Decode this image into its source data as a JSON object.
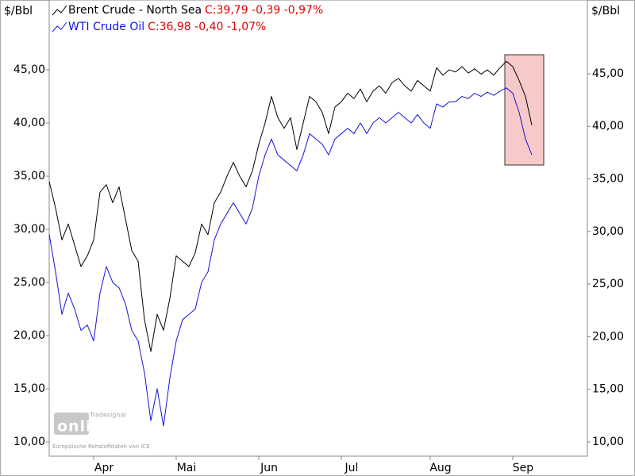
{
  "chart_data": {
    "type": "line",
    "y_label": "$/Bbl",
    "y2_label": "$/Bbl",
    "categories": [
      null,
      null,
      null,
      null,
      null,
      null,
      null,
      "Apr",
      null,
      null,
      null,
      null,
      null,
      null,
      null,
      null,
      null,
      null,
      null,
      null,
      "Mai",
      null,
      null,
      null,
      null,
      null,
      null,
      null,
      null,
      null,
      null,
      null,
      null,
      "Jun",
      null,
      null,
      null,
      null,
      null,
      null,
      null,
      null,
      null,
      null,
      null,
      null,
      "Jul",
      null,
      null,
      null,
      null,
      null,
      null,
      null,
      null,
      null,
      null,
      null,
      null,
      null,
      "Aug",
      null,
      null,
      null,
      null,
      null,
      null,
      null,
      null,
      null,
      null,
      null,
      null,
      "Sep",
      null,
      null,
      null
    ],
    "series": [
      {
        "name": "Brent Crude - North Sea",
        "quote": "C:39,79 -0,39 -0,97%",
        "color": "#000000",
        "values": [
          34.5,
          32.0,
          29.0,
          30.5,
          28.5,
          26.5,
          27.5,
          29.0,
          33.5,
          34.2,
          32.5,
          34.0,
          31.0,
          28.0,
          27.0,
          21.5,
          18.5,
          22.0,
          20.5,
          23.5,
          27.5,
          27.0,
          26.5,
          27.8,
          30.5,
          29.5,
          32.5,
          33.5,
          35.0,
          36.3,
          35.0,
          34.0,
          35.5,
          38.0,
          40.0,
          42.5,
          40.5,
          39.5,
          40.5,
          37.5,
          40.0,
          42.5,
          42.0,
          41.0,
          39.0,
          41.5,
          42.0,
          42.8,
          42.3,
          43.2,
          42.0,
          43.0,
          43.5,
          42.8,
          43.8,
          44.2,
          43.5,
          43.0,
          44.0,
          43.5,
          43.0,
          45.2,
          44.5,
          45.0,
          44.8,
          45.3,
          44.7,
          45.1,
          44.6,
          45.0,
          44.5,
          45.2,
          45.8,
          45.3,
          44.0,
          42.5,
          39.8
        ]
      },
      {
        "name": "WTI Crude Oil",
        "quote": "C:36,98 -0,40 -1,07%",
        "color": "#1414d8",
        "values": [
          29.5,
          26.0,
          22.0,
          24.0,
          22.5,
          20.5,
          21.0,
          19.5,
          24.0,
          26.5,
          25.0,
          24.5,
          23.0,
          20.5,
          19.5,
          16.5,
          12.0,
          15.0,
          11.5,
          16.0,
          19.5,
          21.5,
          22.0,
          22.5,
          25.0,
          26.0,
          29.0,
          30.5,
          31.5,
          32.5,
          31.5,
          30.5,
          32.0,
          35.0,
          37.0,
          38.5,
          37.0,
          36.5,
          36.0,
          35.5,
          37.0,
          39.0,
          38.5,
          38.0,
          37.0,
          38.5,
          39.0,
          39.5,
          39.0,
          40.0,
          39.0,
          40.0,
          40.5,
          40.0,
          40.5,
          41.0,
          40.5,
          40.0,
          40.8,
          40.0,
          39.5,
          41.8,
          41.5,
          42.0,
          42.0,
          42.5,
          42.3,
          42.8,
          42.5,
          42.9,
          42.6,
          43.0,
          43.3,
          42.8,
          41.0,
          38.5,
          37.0
        ]
      }
    ],
    "ylim": [
      8.66,
      51.57
    ],
    "yticks": [
      {
        "value": 10,
        "label": "10,00"
      },
      {
        "value": 15,
        "label": "15,00"
      },
      {
        "value": 20,
        "label": "20,00"
      },
      {
        "value": 25,
        "label": "25,00"
      },
      {
        "value": 30,
        "label": "30,00"
      },
      {
        "value": 35,
        "label": "35,00"
      },
      {
        "value": 40,
        "label": "40,00"
      },
      {
        "value": 45,
        "label": "45,00"
      }
    ],
    "y2lim": [
      8.64,
      52.01
    ],
    "y2ticks": [
      {
        "value": 10,
        "label": "10,00"
      },
      {
        "value": 15,
        "label": "15,00"
      },
      {
        "value": 20,
        "label": "20,00"
      },
      {
        "value": 25,
        "label": "25,00"
      },
      {
        "value": 30,
        "label": "30,00"
      },
      {
        "value": 35,
        "label": "35,00"
      },
      {
        "value": 40,
        "label": "40,00"
      },
      {
        "value": 45,
        "label": "45,00"
      }
    ],
    "quote_color": "#e00000",
    "grid": false,
    "watermark": {
      "brand": "Tradesignal",
      "logo": "online",
      "source": "Europäische Rohstoffdaten von ICE"
    }
  }
}
